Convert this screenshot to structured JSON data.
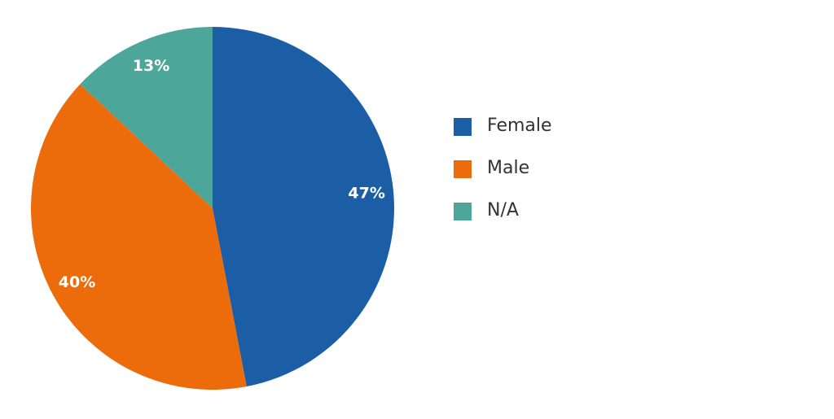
{
  "chart_data": {
    "type": "pie",
    "categories": [
      "Female",
      "Male",
      "N/A"
    ],
    "values": [
      47,
      40,
      13
    ],
    "labels": [
      "47%",
      "40%",
      "13%"
    ],
    "colors": [
      "#1b5ea6",
      "#ec6c0c",
      "#4ca69a"
    ],
    "start_angle": "12 o'clock",
    "direction": "clockwise",
    "legend_position": "right",
    "title": ""
  },
  "legend": {
    "items": [
      {
        "label": "Female",
        "color": "#1b5ea6"
      },
      {
        "label": "Male",
        "color": "#ec6c0c"
      },
      {
        "label": "N/A",
        "color": "#4ca69a"
      }
    ]
  }
}
